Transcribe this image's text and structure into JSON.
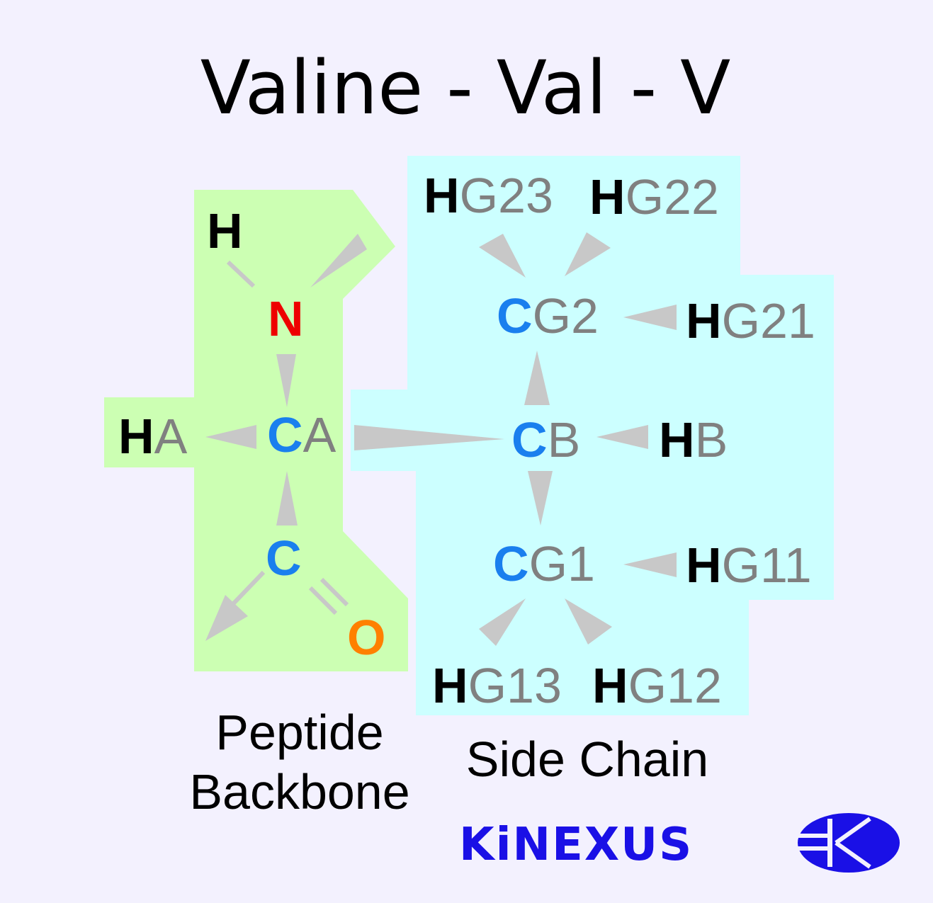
{
  "title": "Valine - Val - V",
  "regions": {
    "backbone": {
      "label_line1": "Peptide",
      "label_line2": "Backbone",
      "color": "#ccffb3"
    },
    "side_chain": {
      "label": "Side Chain",
      "color": "#ccffff"
    }
  },
  "colors": {
    "carbon": "#1a7fee",
    "nitrogen": "#ee0000",
    "oxygen": "#ff8000",
    "hydrogen": "#000000",
    "suffix": "#808080",
    "bond": "#c8c8c8"
  },
  "atoms": {
    "h_amide": {
      "el": "H",
      "suffix": ""
    },
    "n": {
      "el": "N",
      "suffix": ""
    },
    "ha": {
      "el": "H",
      "suffix": "A"
    },
    "ca": {
      "el": "C",
      "suffix": "A"
    },
    "c": {
      "el": "C",
      "suffix": ""
    },
    "o": {
      "el": "O",
      "suffix": ""
    },
    "cb": {
      "el": "C",
      "suffix": "B"
    },
    "hb": {
      "el": "H",
      "suffix": "B"
    },
    "cg2": {
      "el": "C",
      "suffix": "G2"
    },
    "hg21": {
      "el": "H",
      "suffix": "G21"
    },
    "hg22": {
      "el": "H",
      "suffix": "G22"
    },
    "hg23": {
      "el": "H",
      "suffix": "G23"
    },
    "cg1": {
      "el": "C",
      "suffix": "G1"
    },
    "hg11": {
      "el": "H",
      "suffix": "G11"
    },
    "hg12": {
      "el": "H",
      "suffix": "G12"
    },
    "hg13": {
      "el": "H",
      "suffix": "G13"
    }
  },
  "logo": {
    "text": "KiNEXUS",
    "icon": "kinexus-k-globe-icon",
    "color": "#1a10e6"
  }
}
